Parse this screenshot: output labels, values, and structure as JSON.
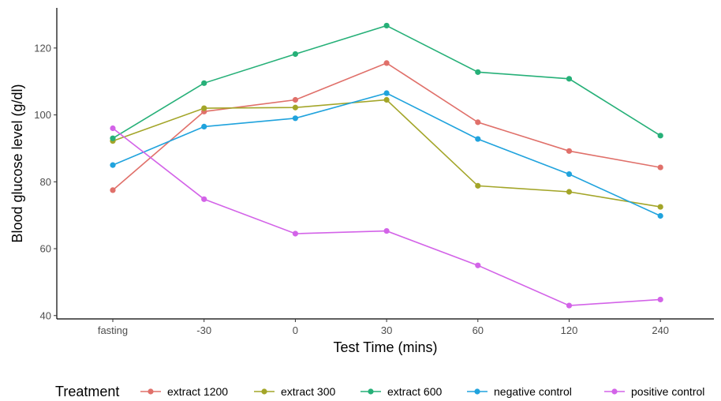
{
  "chart_data": {
    "type": "line",
    "title": "",
    "xlabel": "Test Time (mins)",
    "ylabel": "Blood glucose level (g/dl)",
    "categories": [
      "fasting",
      "-30",
      "0",
      "30",
      "60",
      "120",
      "240"
    ],
    "ylim": [
      39,
      132
    ],
    "yticks": [
      40,
      60,
      80,
      100,
      120
    ],
    "grid": false,
    "legend": {
      "title": "Treatment",
      "position": "bottom"
    },
    "series": [
      {
        "name": "extract 1200",
        "color": "#e0706a",
        "values": [
          77.5,
          101,
          104.5,
          115.5,
          97.8,
          89.2,
          84.3
        ]
      },
      {
        "name": "extract 300",
        "color": "#a3a528",
        "values": [
          92.2,
          102,
          102.2,
          104.5,
          78.8,
          77,
          72.5
        ]
      },
      {
        "name": "extract 600",
        "color": "#26b078",
        "values": [
          93,
          109.5,
          118.2,
          126.7,
          112.8,
          110.8,
          93.8
        ]
      },
      {
        "name": "negative control",
        "color": "#20a3dd",
        "values": [
          85,
          96.5,
          99,
          106.5,
          92.8,
          82.3,
          69.8
        ]
      },
      {
        "name": "positive control",
        "color": "#d363e8",
        "values": [
          96,
          74.8,
          64.5,
          65.3,
          55,
          43,
          44.8
        ]
      }
    ]
  }
}
